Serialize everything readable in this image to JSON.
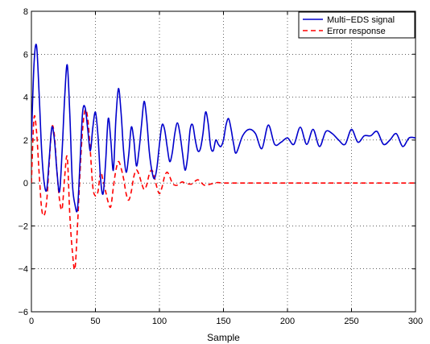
{
  "chart_data": {
    "type": "line",
    "title": "",
    "xlabel": "Sample",
    "ylabel": "",
    "xlim": [
      0,
      300
    ],
    "ylim": [
      -6,
      8
    ],
    "xticks": [
      0,
      50,
      100,
      150,
      200,
      250,
      300
    ],
    "yticks": [
      -6,
      -4,
      -2,
      0,
      2,
      4,
      6,
      8
    ],
    "xtick_labels": [
      "0",
      "50",
      "100",
      "150",
      "200",
      "250",
      "300"
    ],
    "ytick_labels": [
      "−6",
      "−4",
      "−2",
      "0",
      "2",
      "4",
      "6",
      "8"
    ],
    "grid": true,
    "grid_style": "dotted",
    "legend_position": "top-right",
    "series": [
      {
        "name": "Multi−EDS signal",
        "color": "#0000cc",
        "style": "solid",
        "x": [
          0,
          2,
          4,
          6,
          8,
          10,
          12,
          14,
          16,
          18,
          20,
          22,
          24,
          26,
          28,
          30,
          32,
          34,
          36,
          38,
          40,
          42,
          44,
          46,
          48,
          50,
          52,
          54,
          56,
          58,
          60,
          62,
          64,
          66,
          68,
          70,
          72,
          74,
          76,
          78,
          80,
          82,
          84,
          86,
          88,
          90,
          92,
          94,
          96,
          98,
          100,
          102,
          104,
          106,
          108,
          110,
          112,
          114,
          116,
          118,
          120,
          122,
          124,
          126,
          128,
          130,
          132,
          134,
          136,
          138,
          140,
          142,
          144,
          146,
          148,
          150,
          152,
          154,
          156,
          158,
          160,
          165,
          170,
          175,
          180,
          185,
          190,
          195,
          200,
          205,
          210,
          215,
          220,
          225,
          230,
          235,
          240,
          245,
          250,
          255,
          260,
          265,
          270,
          275,
          280,
          285,
          290,
          295,
          300
        ],
        "y": [
          2.0,
          5.5,
          6.4,
          4.2,
          1.5,
          0.0,
          -0.3,
          1.2,
          2.6,
          2.0,
          0.5,
          -0.4,
          1.5,
          4.0,
          5.5,
          3.2,
          0.0,
          -1.0,
          -1.2,
          1.0,
          3.3,
          3.5,
          2.5,
          1.5,
          2.6,
          3.3,
          2.2,
          0.2,
          -0.5,
          1.0,
          3.0,
          2.0,
          0.6,
          3.0,
          4.4,
          3.3,
          1.5,
          0.5,
          1.3,
          2.6,
          2.0,
          0.8,
          1.5,
          2.7,
          3.8,
          3.0,
          1.5,
          0.6,
          0.2,
          0.7,
          1.8,
          2.7,
          2.5,
          1.7,
          1.0,
          1.4,
          2.3,
          2.8,
          2.3,
          1.4,
          0.6,
          1.2,
          2.5,
          2.7,
          2.0,
          1.5,
          1.6,
          2.3,
          3.3,
          2.8,
          1.7,
          1.5,
          2.0,
          1.8,
          1.7,
          2.0,
          2.7,
          3.0,
          2.5,
          1.8,
          1.4,
          2.2,
          2.5,
          2.3,
          1.6,
          2.7,
          1.8,
          1.9,
          2.1,
          1.8,
          2.6,
          1.8,
          2.5,
          1.7,
          2.4,
          2.3,
          2.0,
          1.8,
          2.5,
          1.9,
          2.2,
          2.2,
          2.4,
          1.8,
          2.0,
          2.3,
          1.7,
          2.1,
          2.1
        ]
      },
      {
        "name": "Error response",
        "color": "#ff0000",
        "style": "dashed",
        "x": [
          0,
          2,
          4,
          6,
          8,
          10,
          12,
          14,
          16,
          18,
          20,
          22,
          24,
          26,
          28,
          30,
          32,
          34,
          36,
          38,
          40,
          42,
          44,
          46,
          48,
          50,
          52,
          54,
          56,
          58,
          60,
          62,
          64,
          66,
          68,
          70,
          72,
          74,
          76,
          78,
          80,
          82,
          84,
          86,
          88,
          90,
          92,
          94,
          96,
          98,
          100,
          102,
          104,
          106,
          108,
          110,
          112,
          114,
          116,
          118,
          120,
          125,
          130,
          135,
          140,
          145,
          150,
          160,
          170,
          180,
          190,
          200,
          210,
          220,
          230,
          240,
          250,
          260,
          270,
          280,
          290,
          300
        ],
        "y": [
          0.0,
          3.0,
          2.4,
          0.5,
          -1.2,
          -1.5,
          -0.8,
          1.0,
          2.6,
          2.2,
          0.5,
          -0.8,
          -1.2,
          0.3,
          1.2,
          -1.5,
          -3.2,
          -4.0,
          -2.0,
          0.5,
          2.5,
          3.4,
          3.0,
          1.5,
          -0.2,
          -0.6,
          -0.4,
          0.5,
          0.1,
          -0.4,
          -0.9,
          -1.1,
          -0.2,
          0.6,
          1.0,
          0.7,
          0.2,
          -0.5,
          -0.8,
          -0.4,
          0.3,
          0.6,
          0.4,
          0.0,
          -0.3,
          -0.1,
          0.4,
          0.6,
          0.3,
          -0.2,
          -0.5,
          -0.2,
          0.3,
          0.5,
          0.3,
          0.0,
          -0.1,
          -0.1,
          0.0,
          0.05,
          0.0,
          -0.05,
          0.15,
          -0.1,
          -0.05,
          0.02,
          0.0,
          0.0,
          0.0,
          0.0,
          0.0,
          0.0,
          0.0,
          0.0,
          0.0,
          0.0,
          0.0,
          0.0,
          0.0,
          0.0,
          0.0,
          0.0
        ]
      }
    ]
  }
}
